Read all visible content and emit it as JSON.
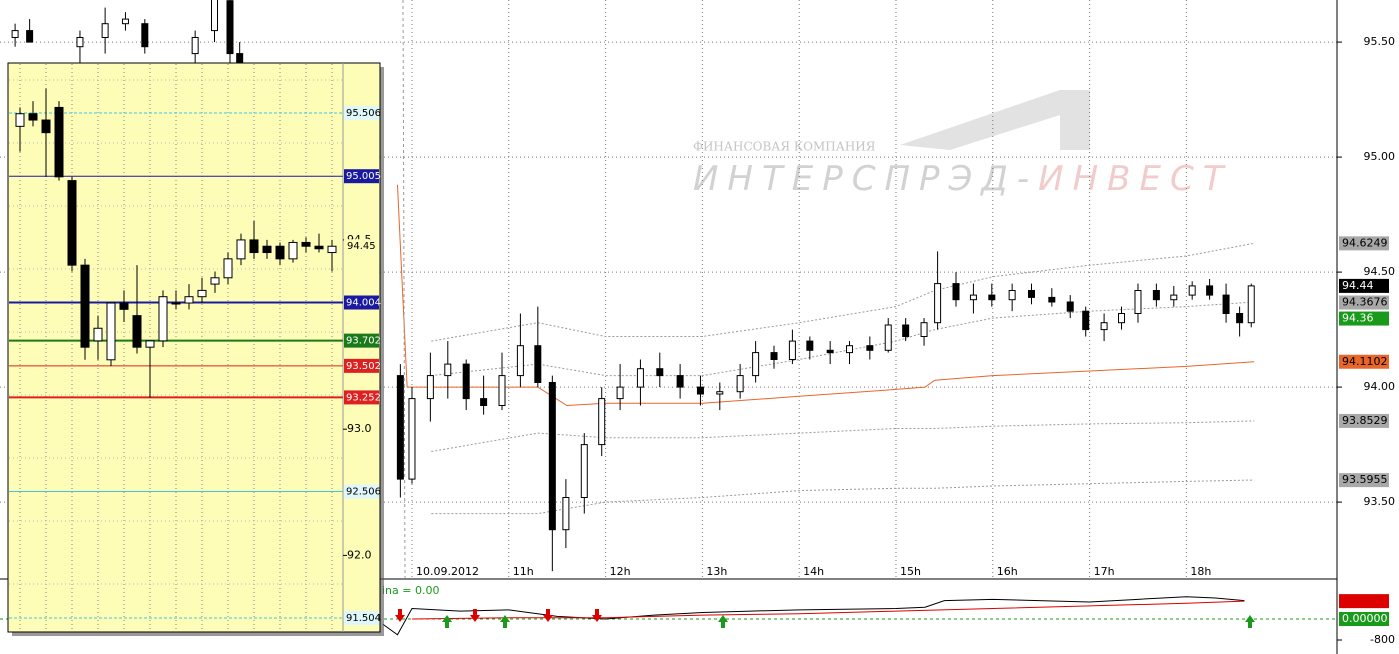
{
  "chart_data": [
    {
      "type": "candlestick",
      "annotations": [
        "ФИНАНСОВАЯ КОМПАНИЯ",
        "ИНТЕРСПРЭД-",
        "ИНВЕСТ"
      ],
      "x": [
        5.9,
        6.05,
        6.57,
        6.83,
        7.04,
        7.24,
        7.76,
        7.96,
        8.12,
        8.22,
        9.88,
        10.0,
        10.19,
        10.37,
        10.56,
        10.74,
        10.93,
        11.12,
        11.3,
        11.45,
        11.59,
        11.78,
        11.96,
        12.15,
        12.36,
        12.56,
        12.77,
        12.98,
        13.18,
        13.39,
        13.55,
        13.74,
        13.93,
        14.11,
        14.32,
        14.52,
        14.73,
        14.92,
        15.1,
        15.29,
        15.43,
        15.62,
        15.8,
        15.99,
        16.2,
        16.4,
        16.61,
        16.8,
        16.96,
        17.15,
        17.33,
        17.5,
        17.69,
        17.87,
        18.06,
        18.24,
        18.41,
        18.55,
        18.67
      ],
      "open": [
        95.52,
        95.55,
        95.48,
        95.52,
        95.58,
        95.58,
        95.45,
        95.55,
        95.68,
        95.45,
        94.05,
        93.6,
        93.95,
        94.05,
        94.1,
        93.95,
        93.92,
        94.05,
        94.18,
        94.02,
        93.38,
        93.52,
        93.75,
        93.95,
        94.0,
        94.08,
        94.05,
        94.0,
        93.97,
        93.98,
        94.05,
        94.15,
        94.12,
        94.2,
        94.16,
        94.15,
        94.18,
        94.16,
        94.27,
        94.22,
        94.28,
        94.45,
        94.38,
        94.4,
        94.38,
        94.42,
        94.39,
        94.37,
        94.33,
        94.25,
        94.28,
        94.32,
        94.42,
        94.38,
        94.4,
        94.44,
        94.4,
        94.32,
        94.28
      ],
      "high": [
        95.58,
        95.6,
        95.55,
        95.65,
        95.63,
        95.6,
        95.55,
        95.75,
        95.7,
        95.5,
        94.1,
        94.0,
        94.15,
        94.2,
        94.12,
        94.05,
        94.15,
        94.32,
        94.35,
        94.05,
        93.6,
        93.8,
        94.0,
        94.1,
        94.12,
        94.15,
        94.1,
        94.05,
        94.02,
        94.1,
        94.2,
        94.18,
        94.25,
        94.22,
        94.2,
        94.2,
        94.22,
        94.3,
        94.3,
        94.3,
        94.59,
        94.5,
        94.45,
        94.45,
        94.45,
        94.45,
        94.43,
        94.4,
        94.35,
        94.32,
        94.35,
        94.45,
        94.45,
        94.44,
        94.46,
        94.47,
        94.45,
        94.35,
        94.45
      ],
      "low": [
        95.48,
        95.5,
        95.4,
        95.45,
        95.55,
        95.45,
        95.4,
        95.5,
        95.4,
        95.38,
        93.52,
        93.58,
        93.85,
        93.95,
        93.9,
        93.88,
        93.9,
        94.0,
        94.0,
        93.2,
        93.3,
        93.45,
        93.7,
        93.9,
        93.92,
        94.0,
        93.95,
        93.92,
        93.9,
        93.95,
        94.02,
        94.08,
        94.1,
        94.12,
        94.1,
        94.1,
        94.12,
        94.15,
        94.2,
        94.18,
        94.25,
        94.35,
        94.32,
        94.35,
        94.33,
        94.36,
        94.35,
        94.3,
        94.22,
        94.2,
        94.25,
        94.28,
        94.35,
        94.35,
        94.38,
        94.38,
        94.28,
        94.22,
        94.26
      ],
      "close": [
        95.55,
        95.5,
        95.52,
        95.58,
        95.6,
        95.48,
        95.52,
        95.7,
        95.45,
        95.4,
        93.6,
        93.95,
        94.05,
        94.1,
        93.95,
        93.92,
        94.05,
        94.18,
        94.02,
        93.38,
        93.52,
        93.75,
        93.95,
        94.0,
        94.08,
        94.05,
        94.0,
        93.97,
        93.98,
        94.05,
        94.15,
        94.12,
        94.2,
        94.16,
        94.15,
        94.18,
        94.16,
        94.27,
        94.22,
        94.28,
        94.45,
        94.38,
        94.4,
        94.38,
        94.42,
        94.39,
        94.37,
        94.33,
        94.25,
        94.28,
        94.32,
        94.42,
        94.38,
        94.4,
        94.44,
        94.4,
        94.32,
        94.28,
        94.44
      ],
      "lines": [
        {
          "color": "#999999",
          "dash": true,
          "x": [
            10.2,
            11.3,
            12,
            13,
            14,
            15,
            15.4,
            16,
            17,
            18,
            18.7
          ],
          "values": [
            94.2,
            94.28,
            94.22,
            94.22,
            94.28,
            94.35,
            94.42,
            94.48,
            94.53,
            94.57,
            94.625
          ]
        },
        {
          "color": "#999999",
          "dash": true,
          "x": [
            10.2,
            11.3,
            12,
            13,
            14,
            15,
            15.4,
            16,
            17,
            18,
            18.7
          ],
          "values": [
            94.05,
            94.1,
            94.05,
            94.05,
            94.12,
            94.2,
            94.25,
            94.3,
            94.33,
            94.35,
            94.37
          ]
        },
        {
          "color": "#999999",
          "dash": true,
          "x": [
            10.2,
            11.3,
            12,
            13,
            14,
            15,
            15.4,
            16,
            17,
            18,
            18.7
          ],
          "values": [
            93.72,
            93.8,
            93.78,
            93.78,
            93.8,
            93.82,
            93.82,
            93.83,
            93.84,
            93.845,
            93.853
          ]
        },
        {
          "color": "#999999",
          "dash": true,
          "x": [
            10.2,
            11.3,
            12,
            13,
            14,
            15,
            15.4,
            16,
            17,
            18,
            18.7
          ],
          "values": [
            93.45,
            93.45,
            93.5,
            93.52,
            93.55,
            93.56,
            93.56,
            93.57,
            93.58,
            93.59,
            93.596
          ]
        },
        {
          "color": "#e8662a",
          "dash": false,
          "x": [
            9.85,
            9.95,
            10.5,
            11.3,
            11.6,
            12,
            13,
            14,
            15,
            15.3,
            15.4,
            16,
            17,
            18,
            18.7
          ],
          "values": [
            94.88,
            94.0,
            94.0,
            94.0,
            93.92,
            93.93,
            93.93,
            93.96,
            93.99,
            94.0,
            94.03,
            94.05,
            94.07,
            94.09,
            94.11
          ]
        }
      ],
      "xlim": [
        5.744,
        19.556
      ],
      "xticks": [
        {
          "value": 10,
          "label": "10.09.2012"
        },
        {
          "value": 11,
          "label": "11h"
        },
        {
          "value": 12,
          "label": "12h"
        },
        {
          "value": 13,
          "label": "13h"
        },
        {
          "value": 14,
          "label": "14h"
        },
        {
          "value": 15,
          "label": "15h"
        },
        {
          "value": 16,
          "label": "16h"
        },
        {
          "value": 17,
          "label": "17h"
        },
        {
          "value": 18,
          "label": "18h"
        }
      ],
      "ylim": [
        93.17,
        95.683
      ],
      "yticks": [
        {
          "value": 95.5,
          "label": "95.50"
        },
        {
          "value": 95,
          "label": "95.00"
        },
        {
          "value": 94.5,
          "label": "94.50"
        },
        {
          "value": 94,
          "label": "94.00"
        },
        {
          "value": 93.5,
          "label": "93.50"
        }
      ],
      "price_tags": [
        {
          "value": 94.6249,
          "color": "#a8a8a8",
          "text_color": "#000000"
        },
        {
          "value": 94.44,
          "color": "#000000",
          "text_color": "#ffffff"
        },
        {
          "value": 94.3676,
          "color": "#a8a8a8",
          "text_color": "#000000"
        },
        {
          "value": 94.36,
          "color": "#1a9a1a",
          "text_color": "#ffffff"
        },
        {
          "value": 94.1102,
          "color": "#e8662a",
          "text_color": "#000000"
        },
        {
          "value": 93.8529,
          "color": "#a8a8a8",
          "text_color": "#000000"
        },
        {
          "value": 93.5955,
          "color": "#a8a8a8",
          "text_color": "#000000"
        }
      ],
      "grid": true
    },
    {
      "type": "line",
      "label": "ina = 0.00",
      "series": [
        {
          "color": "#000000",
          "x": [
            9.7,
            9.85,
            10,
            10.5,
            11,
            11.5,
            12,
            12.5,
            13,
            13.5,
            14,
            15,
            15.3,
            15.5,
            16,
            17,
            17.5,
            18,
            18.3,
            18.6
          ],
          "values": [
            -200,
            -600,
            400,
            300,
            350,
            100,
            0,
            150,
            250,
            300,
            350,
            400,
            450,
            700,
            750,
            650,
            750,
            850,
            800,
            700
          ]
        },
        {
          "color": "#dd0000",
          "x": [
            10,
            11,
            12,
            13,
            14,
            15,
            16,
            17,
            18,
            18.6
          ],
          "values": [
            0,
            50,
            50,
            150,
            200,
            300,
            400,
            500,
            600,
            681.105
          ]
        }
      ],
      "xlim": [
        5.744,
        19.556
      ],
      "ylim": [
        -1333,
        1410
      ],
      "yticks": [
        -800
      ],
      "tags": [
        {
          "value": 681.105,
          "color": "#dd0000",
          "text_color": "#ffffff"
        },
        {
          "value": 0,
          "label": "0.00000",
          "color": "#1a9a1a",
          "text_color": "#ffffff"
        }
      ]
    },
    {
      "type": "candlestick",
      "open": [
        95.4,
        95.5,
        95.45,
        95.55,
        94.97,
        94.3,
        93.7,
        93.55,
        94.0,
        93.9,
        93.65,
        93.7,
        94.0,
        94.0,
        94.05,
        94.15,
        94.2,
        94.35,
        94.5,
        94.45,
        94.45,
        94.35,
        94.48,
        94.45,
        94.4
      ],
      "high": [
        95.55,
        95.6,
        95.7,
        95.6,
        95.0,
        94.35,
        93.9,
        94.0,
        94.1,
        94.3,
        93.7,
        94.1,
        94.1,
        94.15,
        94.2,
        94.25,
        94.4,
        94.55,
        94.65,
        94.5,
        94.48,
        94.5,
        94.52,
        94.55,
        94.5
      ],
      "low": [
        95.2,
        95.4,
        95.0,
        94.97,
        94.25,
        93.55,
        93.55,
        93.5,
        93.85,
        93.6,
        93.25,
        93.65,
        93.95,
        93.95,
        94.0,
        94.08,
        94.15,
        94.3,
        94.35,
        94.35,
        94.3,
        94.32,
        94.4,
        94.4,
        94.25
      ],
      "close": [
        95.5,
        95.45,
        95.35,
        95.0,
        94.3,
        93.65,
        93.8,
        94.0,
        93.95,
        93.65,
        93.7,
        94.05,
        94.0,
        94.05,
        94.1,
        94.2,
        94.35,
        94.5,
        94.4,
        94.4,
        94.35,
        94.48,
        94.45,
        94.43,
        94.45
      ],
      "ylim": [
        91.393,
        95.902
      ],
      "yticks": [
        94.5,
        {
          "value": 93,
          "label": "93.0"
        },
        {
          "value": 92,
          "label": "92.0"
        }
      ],
      "levels": [
        {
          "value": 95.506,
          "color": "#40c8e0",
          "text_color": "#000000",
          "width": 1,
          "dash": true
        },
        {
          "value": 95.005,
          "color": "#1a1aa0",
          "text_color": "#ffffff",
          "width": 1,
          "dash": false
        },
        {
          "value": 94.004,
          "color": "#1a1aa0",
          "text_color": "#ffffff",
          "width": 2,
          "dash": false
        },
        {
          "value": 93.702,
          "color": "#1a7a1a",
          "text_color": "#ffffff",
          "width": 2,
          "dash": false
        },
        {
          "value": 93.502,
          "color": "#dd2020",
          "text_color": "#ffffff",
          "width": 1,
          "dash": false
        },
        {
          "value": 93.252,
          "color": "#dd2020",
          "text_color": "#ffffff",
          "width": 2,
          "dash": false
        },
        {
          "value": 92.506,
          "color": "#40c8e0",
          "text_color": "#000000",
          "width": 1,
          "dash": false
        },
        {
          "value": 91.504,
          "color": "#40c8e0",
          "text_color": "#000000",
          "width": 1,
          "dash": true
        }
      ],
      "last_price": 94.45,
      "grid": true
    }
  ]
}
